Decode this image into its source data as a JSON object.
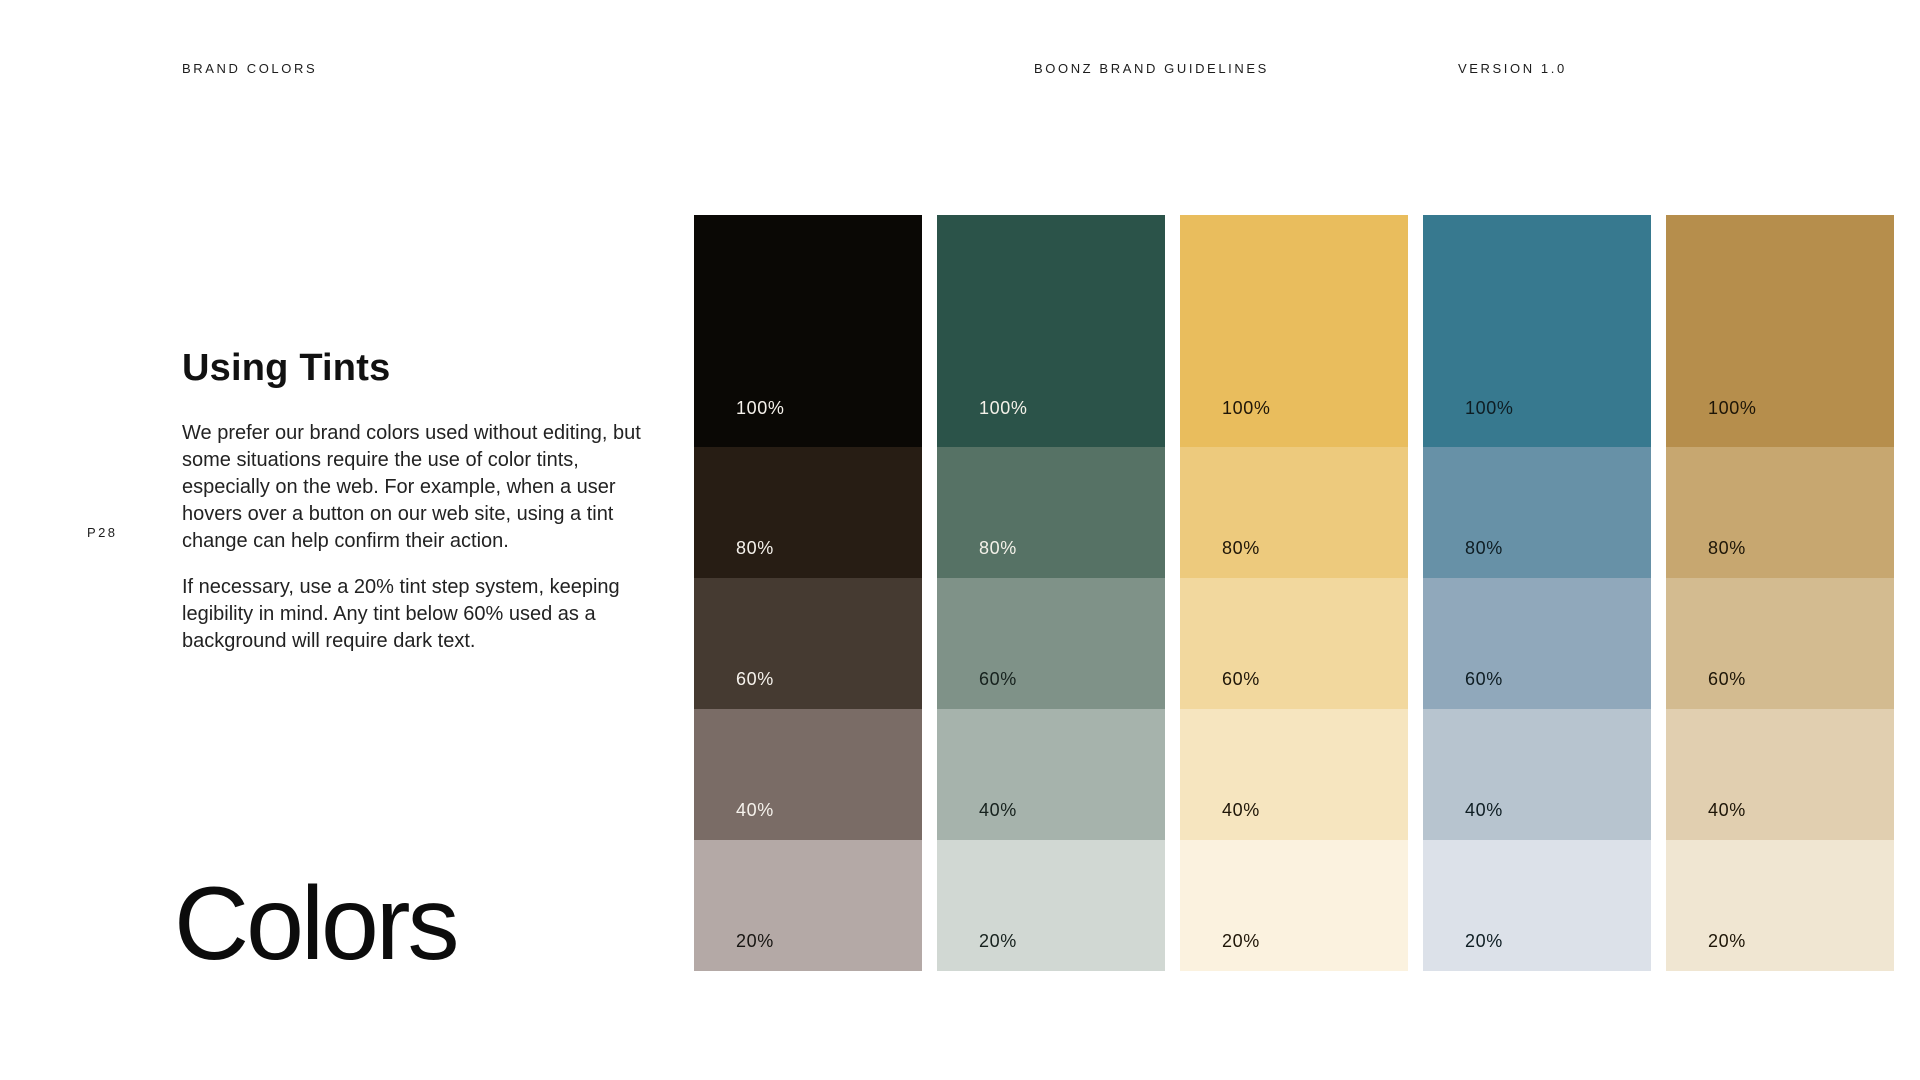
{
  "header": {
    "left": "BRAND COLORS",
    "center": "BOONZ BRAND GUIDELINES",
    "right": "VERSION 1.0"
  },
  "page_number": "P28",
  "section": {
    "heading": "Using Tints",
    "paragraph1": "We prefer our brand colors used without editing, but some situations require the use of color tints, especially on the web. For example, when a user hovers over a button on our web site, using a tint change can help confirm their action.",
    "paragraph2": "If necessary, use a 20% tint step system, keeping legibility in mind. Any tint below 60% used as a background will require dark text."
  },
  "title": "Colors",
  "tints": {
    "levels": [
      "100%",
      "80%",
      "60%",
      "40%",
      "20%"
    ],
    "columns": [
      {
        "name": "black",
        "swatches": [
          {
            "label": "100%",
            "hex": "#0a0805",
            "text": "#f6f2ec"
          },
          {
            "label": "80%",
            "hex": "#271d14",
            "text": "#f6f2ec"
          },
          {
            "label": "60%",
            "hex": "#453a31",
            "text": "#f6f2ec"
          },
          {
            "label": "40%",
            "hex": "#7a6c66",
            "text": "#f6f2ec"
          },
          {
            "label": "20%",
            "hex": "#b4a9a6",
            "text": "#171512"
          }
        ]
      },
      {
        "name": "green",
        "swatches": [
          {
            "label": "100%",
            "hex": "#2b5349",
            "text": "#f4f1e9"
          },
          {
            "label": "80%",
            "hex": "#567265",
            "text": "#f4f1e9"
          },
          {
            "label": "60%",
            "hex": "#7f9288",
            "text": "#16211d"
          },
          {
            "label": "40%",
            "hex": "#a6b3ac",
            "text": "#16211d"
          },
          {
            "label": "20%",
            "hex": "#d1d8d3",
            "text": "#16211d"
          }
        ]
      },
      {
        "name": "gold",
        "swatches": [
          {
            "label": "100%",
            "hex": "#e9bd5d",
            "text": "#1f1608"
          },
          {
            "label": "80%",
            "hex": "#edca7d",
            "text": "#1f1608"
          },
          {
            "label": "60%",
            "hex": "#f2d89e",
            "text": "#1f1608"
          },
          {
            "label": "40%",
            "hex": "#f6e5bf",
            "text": "#1f1608"
          },
          {
            "label": "20%",
            "hex": "#fbf2df",
            "text": "#1f1608"
          }
        ]
      },
      {
        "name": "blue",
        "swatches": [
          {
            "label": "100%",
            "hex": "#37798f",
            "text": "#0e1d23"
          },
          {
            "label": "80%",
            "hex": "#6791a7",
            "text": "#0e1d23"
          },
          {
            "label": "60%",
            "hex": "#90a8bb",
            "text": "#0e1d23"
          },
          {
            "label": "40%",
            "hex": "#b7c4cf",
            "text": "#0e1d23"
          },
          {
            "label": "20%",
            "hex": "#dce1e9",
            "text": "#0e1d23"
          }
        ]
      },
      {
        "name": "tan",
        "swatches": [
          {
            "label": "100%",
            "hex": "#b68e4c",
            "text": "#1d1507"
          },
          {
            "label": "80%",
            "hex": "#c7a770",
            "text": "#1d1507"
          },
          {
            "label": "60%",
            "hex": "#d3bb90",
            "text": "#1d1507"
          },
          {
            "label": "40%",
            "hex": "#e1cfb0",
            "text": "#1d1507"
          },
          {
            "label": "20%",
            "hex": "#f0e6d2",
            "text": "#1d1507"
          }
        ]
      }
    ]
  },
  "colors": {
    "background": "#ffffff",
    "text": "#1a1a1a"
  }
}
